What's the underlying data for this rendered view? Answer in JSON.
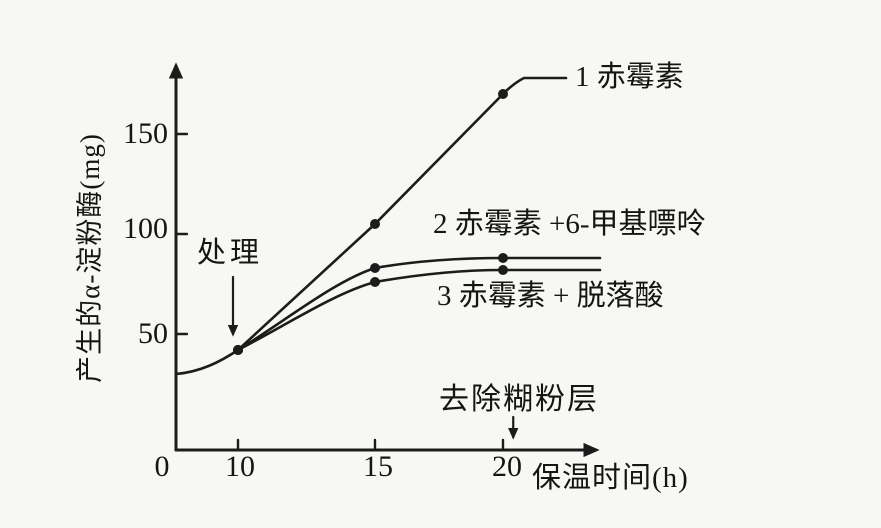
{
  "colors": {
    "ink": "#1c1c1c",
    "paper": "#f7f7f3"
  },
  "chart_data": {
    "type": "line",
    "title": "",
    "xlabel": "保温时间(h)",
    "ylabel": "产生的α-淀粉酶(mg)",
    "grid": false,
    "legend_position": "inline-labels",
    "x": [
      0,
      10,
      15,
      20
    ],
    "x_tick_labels": [
      "0",
      "10",
      "15",
      "20"
    ],
    "y_tick_values": [
      50,
      100,
      150
    ],
    "y_tick_labels": [
      "50",
      "100",
      "150"
    ],
    "ylim": [
      0,
      190
    ],
    "series": [
      {
        "label": "1 赤霉素",
        "values": [
          30,
          42,
          105,
          170
        ],
        "end_value": 178,
        "flat_after_20h": false
      },
      {
        "label": "2 赤霉素 +6-甲基嘌呤",
        "values": [
          30,
          42,
          83,
          88
        ],
        "end_value": 88,
        "flat_after_20h": true
      },
      {
        "label": "3 赤霉素 + 脱落酸",
        "values": [
          30,
          42,
          76,
          82
        ],
        "end_value": 82,
        "flat_after_20h": true
      }
    ],
    "annotations": [
      {
        "text": "处理",
        "arrow_target_x": 10
      },
      {
        "text": "去除糊粉层",
        "arrow_target_x": 20.4
      }
    ]
  }
}
